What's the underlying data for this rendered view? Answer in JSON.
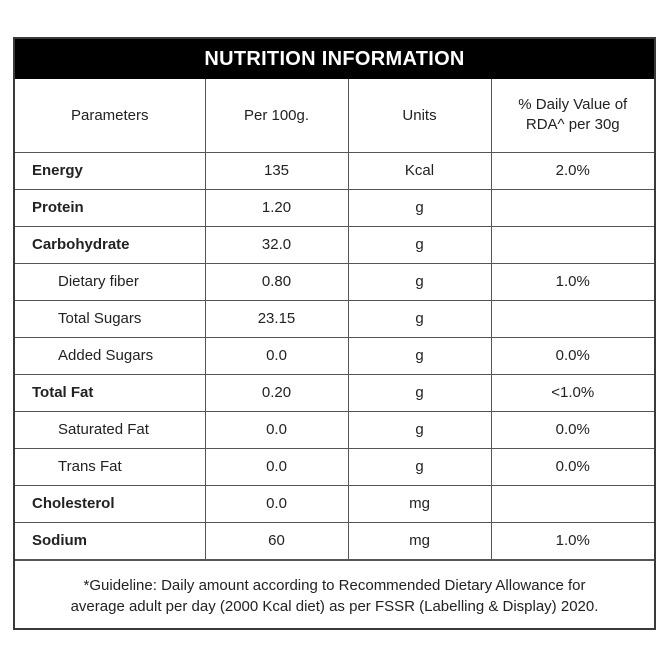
{
  "title": "NUTRITION INFORMATION",
  "headers": {
    "parameters": "Parameters",
    "per100g": "Per 100g.",
    "units": "Units",
    "dv_line1": "% Daily Value of",
    "dv_line2": "RDA^ per 30g"
  },
  "rows": [
    {
      "name": "Energy",
      "value": "135",
      "unit": "Kcal",
      "dv": "2.0%",
      "level": "main"
    },
    {
      "name": "Protein",
      "value": "1.20",
      "unit": "g",
      "dv": "",
      "level": "main"
    },
    {
      "name": "Carbohydrate",
      "value": "32.0",
      "unit": "g",
      "dv": "",
      "level": "main"
    },
    {
      "name": "Dietary fiber",
      "value": "0.80",
      "unit": "g",
      "dv": "1.0%",
      "level": "sub"
    },
    {
      "name": "Total Sugars",
      "value": "23.15",
      "unit": "g",
      "dv": "",
      "level": "sub"
    },
    {
      "name": "Added Sugars",
      "value": "0.0",
      "unit": "g",
      "dv": "0.0%",
      "level": "sub"
    },
    {
      "name": "Total Fat",
      "value": "0.20",
      "unit": "g",
      "dv": "<1.0%",
      "level": "main"
    },
    {
      "name": "Saturated Fat",
      "value": "0.0",
      "unit": "g",
      "dv": "0.0%",
      "level": "sub"
    },
    {
      "name": "Trans Fat",
      "value": "0.0",
      "unit": "g",
      "dv": "0.0%",
      "level": "sub"
    },
    {
      "name": "Cholesterol",
      "value": "0.0",
      "unit": "mg",
      "dv": "",
      "level": "main"
    },
    {
      "name": "Sodium",
      "value": "60",
      "unit": "mg",
      "dv": "1.0%",
      "level": "main"
    }
  ],
  "footnote_line1": "*Guideline: Daily amount according to Recommended Dietary Allowance for",
  "footnote_line2": "average adult per day (2000 Kcal diet) as per FSSR (Labelling & Display) 2020."
}
